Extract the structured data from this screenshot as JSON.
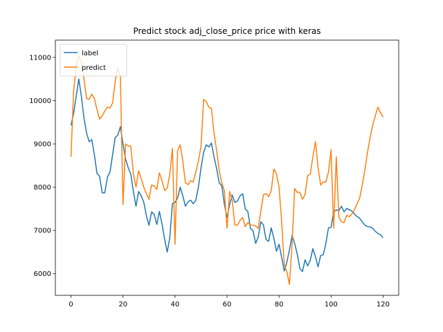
{
  "chart_data": {
    "type": "line",
    "title": "Predict stock adj_close_price price with keras",
    "xlabel": "",
    "ylabel": "",
    "xlim": [
      -6,
      126
    ],
    "ylim": [
      5500,
      11400
    ],
    "xticks": [
      "0",
      "20",
      "40",
      "60",
      "80",
      "100",
      "120"
    ],
    "yticks": [
      "6000",
      "7000",
      "8000",
      "9000",
      "10000",
      "11000"
    ],
    "grid": false,
    "legend": "upper-left",
    "series": [
      {
        "name": "label",
        "color": "#1f77b4",
        "values": [
          9430,
          9700,
          10100,
          10500,
          10100,
          9600,
          9250,
          9050,
          9100,
          8750,
          8320,
          8250,
          7870,
          7870,
          8230,
          8350,
          8750,
          9150,
          9200,
          9400,
          9000,
          8650,
          8450,
          8300,
          7900,
          7560,
          7900,
          7800,
          7650,
          7340,
          7120,
          7430,
          7370,
          7140,
          7440,
          7150,
          6800,
          6500,
          6840,
          7620,
          7650,
          7750,
          8000,
          7800,
          7560,
          7660,
          7700,
          7620,
          7700,
          8000,
          8450,
          8800,
          8980,
          8930,
          9020,
          8700,
          8430,
          8100,
          8030,
          7600,
          7300,
          7600,
          7820,
          7650,
          7680,
          7800,
          7850,
          7500,
          7440,
          7050,
          6990,
          6700,
          6850,
          7200,
          7130,
          6790,
          6750,
          7060,
          6820,
          6520,
          6680,
          6380,
          6060,
          6270,
          6550,
          6880,
          6700,
          6450,
          6120,
          6050,
          6320,
          6180,
          6310,
          6580,
          6390,
          6160,
          6420,
          6440,
          6700,
          7060,
          7070,
          7440,
          7470,
          7460,
          7560,
          7430,
          7510,
          7480,
          7450,
          7380,
          7320,
          7280,
          7200,
          7120,
          7090,
          7080,
          7050,
          6980,
          6930,
          6900,
          6830
        ]
      },
      {
        "name": "predict",
        "color": "#ff7f0e",
        "values": [
          8700,
          10200,
          10800,
          11050,
          10900,
          10500,
          10050,
          10030,
          10150,
          10050,
          9800,
          9570,
          9650,
          9760,
          9850,
          9830,
          9950,
          10450,
          10750,
          10550,
          7600,
          9000,
          8950,
          8950,
          8300,
          8000,
          8380,
          8200,
          8000,
          7850,
          7720,
          8050,
          8030,
          7950,
          8330,
          8150,
          7920,
          7980,
          8300,
          8900,
          6680,
          8850,
          8980,
          8600,
          8100,
          8060,
          8150,
          8120,
          8350,
          8600,
          8950,
          10030,
          9980,
          9850,
          9820,
          9250,
          8850,
          8380,
          8100,
          7900,
          7050,
          7900,
          7700,
          7130,
          7120,
          7230,
          7300,
          7090,
          7180,
          7130,
          7120,
          7100,
          7050,
          7450,
          7830,
          7850,
          7780,
          7920,
          8420,
          8320,
          8000,
          7200,
          6200,
          6050,
          5750,
          6680,
          7970,
          7880,
          7880,
          7720,
          7830,
          8270,
          8300,
          8700,
          9050,
          8450,
          8050,
          8120,
          8120,
          8350,
          8870,
          7050,
          8700,
          7300,
          7200,
          7180,
          7350,
          7320,
          7380,
          7480,
          7620,
          7750,
          8050,
          8400,
          8800,
          9150,
          9430,
          9650,
          9850,
          9720,
          9620
        ]
      }
    ]
  }
}
